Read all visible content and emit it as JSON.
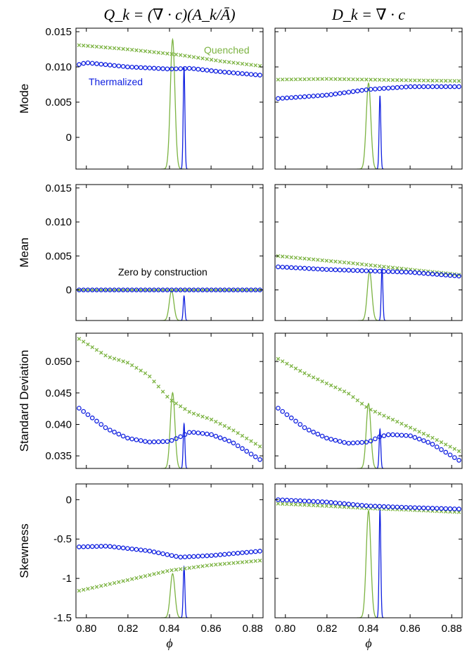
{
  "chart_data": {
    "type": "scatter",
    "column_titles": [
      "Q_k = (∇ · c)(A_k/Ā)",
      "D_k = ∇ · c"
    ],
    "xlabel": "ϕ",
    "xlim": [
      0.795,
      0.885
    ],
    "xticks": [
      0.8,
      0.82,
      0.84,
      0.86,
      0.88
    ],
    "xtick_labels": [
      "0.80",
      "0.82",
      "0.84",
      "0.86",
      "0.88"
    ],
    "series_names": [
      "Quenched",
      "Thermalized"
    ],
    "colors": {
      "quenched": "#7cb342",
      "thermalized": "#1020e0"
    },
    "rows": [
      {
        "label": "Mode",
        "ylim": [
          -0.0045,
          0.0155
        ],
        "yticks": [
          0,
          0.005,
          0.01,
          0.015
        ],
        "ytick_labels": [
          "0",
          "0.005",
          "0.010",
          "0.015"
        ],
        "legend_labels": [
          "Quenched",
          "Thermalized"
        ],
        "panels": [
          {
            "quenched_pts": [
              [
                0.796,
                0.0131
              ],
              [
                0.82,
                0.0125
              ],
              [
                0.845,
                0.0117
              ],
              [
                0.865,
                0.0108
              ],
              [
                0.885,
                0.0101
              ]
            ],
            "thermalized_pts": [
              [
                0.796,
                0.0103
              ],
              [
                0.8,
                0.0106
              ],
              [
                0.82,
                0.01
              ],
              [
                0.84,
                0.0097
              ],
              [
                0.85,
                0.0098
              ],
              [
                0.865,
                0.0093
              ],
              [
                0.885,
                0.0088
              ]
            ],
            "peaks": {
              "quenched": {
                "center": 0.8415,
                "sigma": 0.0011,
                "height": 0.92
              },
              "thermalized": {
                "center": 0.847,
                "sigma": 0.0004,
                "height": 0.72
              }
            }
          },
          {
            "quenched_pts": [
              [
                0.796,
                0.0082
              ],
              [
                0.82,
                0.0083
              ],
              [
                0.84,
                0.0082
              ],
              [
                0.86,
                0.0081
              ],
              [
                0.885,
                0.008
              ]
            ],
            "thermalized_pts": [
              [
                0.796,
                0.0055
              ],
              [
                0.82,
                0.006
              ],
              [
                0.84,
                0.0068
              ],
              [
                0.86,
                0.0072
              ],
              [
                0.885,
                0.0072
              ]
            ],
            "peaks": {
              "quenched": {
                "center": 0.84,
                "sigma": 0.0011,
                "height": 0.61
              },
              "thermalized": {
                "center": 0.8455,
                "sigma": 0.0004,
                "height": 0.52
              }
            }
          }
        ]
      },
      {
        "label": "Mean",
        "ylim": [
          -0.0045,
          0.0155
        ],
        "yticks": [
          0,
          0.005,
          0.01,
          0.015
        ],
        "ytick_labels": [
          "0",
          "0.005",
          "0.010",
          "0.015"
        ],
        "annotation": "Zero by construction",
        "panels": [
          {
            "quenched_pts": [
              [
                0.796,
                0.0
              ],
              [
                0.885,
                0.0
              ]
            ],
            "thermalized_pts": [
              [
                0.796,
                0.0
              ],
              [
                0.885,
                0.0
              ]
            ],
            "peaks": {
              "quenched": {
                "center": 0.841,
                "sigma": 0.0011,
                "height": 0.22
              },
              "thermalized": {
                "center": 0.847,
                "sigma": 0.0004,
                "height": 0.18
              }
            }
          },
          {
            "quenched_pts": [
              [
                0.796,
                0.005
              ],
              [
                0.83,
                0.004
              ],
              [
                0.86,
                0.003
              ],
              [
                0.885,
                0.0022
              ]
            ],
            "thermalized_pts": [
              [
                0.796,
                0.0034
              ],
              [
                0.82,
                0.003
              ],
              [
                0.84,
                0.0028
              ],
              [
                0.86,
                0.0026
              ],
              [
                0.885,
                0.002
              ]
            ],
            "peaks": {
              "quenched": {
                "center": 0.8405,
                "sigma": 0.0011,
                "height": 0.36
              },
              "thermalized": {
                "center": 0.8465,
                "sigma": 0.0004,
                "height": 0.38
              }
            }
          }
        ]
      },
      {
        "label": "Standard Deviation",
        "ylim": [
          0.033,
          0.0545
        ],
        "yticks": [
          0.035,
          0.04,
          0.045,
          0.05
        ],
        "ytick_labels": [
          "0.035",
          "0.040",
          "0.045",
          "0.050"
        ],
        "panels": [
          {
            "quenched_pts": [
              [
                0.796,
                0.0537
              ],
              [
                0.81,
                0.0508
              ],
              [
                0.82,
                0.0498
              ],
              [
                0.83,
                0.0478
              ],
              [
                0.84,
                0.044
              ],
              [
                0.85,
                0.0419
              ],
              [
                0.86,
                0.0408
              ],
              [
                0.87,
                0.0392
              ],
              [
                0.885,
                0.0362
              ]
            ],
            "thermalized_pts": [
              [
                0.796,
                0.0427
              ],
              [
                0.81,
                0.0393
              ],
              [
                0.82,
                0.0378
              ],
              [
                0.83,
                0.0372
              ],
              [
                0.84,
                0.0373
              ],
              [
                0.845,
                0.038
              ],
              [
                0.85,
                0.0388
              ],
              [
                0.86,
                0.0384
              ],
              [
                0.87,
                0.0372
              ],
              [
                0.885,
                0.0341
              ]
            ],
            "peaks": {
              "quenched": {
                "center": 0.8415,
                "sigma": 0.0011,
                "height": 0.56
              },
              "thermalized": {
                "center": 0.847,
                "sigma": 0.0004,
                "height": 0.33
              }
            }
          },
          {
            "quenched_pts": [
              [
                0.796,
                0.0505
              ],
              [
                0.81,
                0.048
              ],
              [
                0.82,
                0.0465
              ],
              [
                0.83,
                0.045
              ],
              [
                0.84,
                0.0425
              ],
              [
                0.85,
                0.041
              ],
              [
                0.86,
                0.0395
              ],
              [
                0.87,
                0.038
              ],
              [
                0.885,
                0.0355
              ]
            ],
            "thermalized_pts": [
              [
                0.796,
                0.0427
              ],
              [
                0.81,
                0.0393
              ],
              [
                0.82,
                0.0378
              ],
              [
                0.83,
                0.037
              ],
              [
                0.84,
                0.0372
              ],
              [
                0.845,
                0.038
              ],
              [
                0.85,
                0.0384
              ],
              [
                0.86,
                0.0382
              ],
              [
                0.87,
                0.037
              ],
              [
                0.885,
                0.034
              ]
            ],
            "peaks": {
              "quenched": {
                "center": 0.84,
                "sigma": 0.0011,
                "height": 0.48
              },
              "thermalized": {
                "center": 0.8455,
                "sigma": 0.0004,
                "height": 0.29
              }
            }
          }
        ]
      },
      {
        "label": "Skewness",
        "ylim": [
          -1.5,
          0.2
        ],
        "yticks": [
          -1.5,
          -1,
          -0.5,
          0
        ],
        "ytick_labels": [
          "-1.5",
          "-1",
          "-0.5",
          "0"
        ],
        "panels": [
          {
            "quenched_pts": [
              [
                0.796,
                -1.16
              ],
              [
                0.82,
                -1.02
              ],
              [
                0.84,
                -0.9
              ],
              [
                0.86,
                -0.83
              ],
              [
                0.885,
                -0.77
              ]
            ],
            "thermalized_pts": [
              [
                0.796,
                -0.6
              ],
              [
                0.81,
                -0.59
              ],
              [
                0.83,
                -0.65
              ],
              [
                0.845,
                -0.73
              ],
              [
                0.86,
                -0.71
              ],
              [
                0.885,
                -0.65
              ]
            ],
            "peaks": {
              "quenched": {
                "center": 0.8415,
                "sigma": 0.0011,
                "height": 0.33
              },
              "thermalized": {
                "center": 0.847,
                "sigma": 0.0004,
                "height": 0.38
              }
            }
          },
          {
            "quenched_pts": [
              [
                0.796,
                -0.05
              ],
              [
                0.82,
                -0.08
              ],
              [
                0.84,
                -0.11
              ],
              [
                0.86,
                -0.13
              ],
              [
                0.885,
                -0.16
              ]
            ],
            "thermalized_pts": [
              [
                0.796,
                0.0
              ],
              [
                0.82,
                -0.03
              ],
              [
                0.84,
                -0.08
              ],
              [
                0.86,
                -0.1
              ],
              [
                0.885,
                -0.12
              ]
            ],
            "peaks": {
              "quenched": {
                "center": 0.84,
                "sigma": 0.0011,
                "height": 0.8
              },
              "thermalized": {
                "center": 0.8455,
                "sigma": 0.0004,
                "height": 0.81
              }
            }
          }
        ]
      }
    ]
  }
}
